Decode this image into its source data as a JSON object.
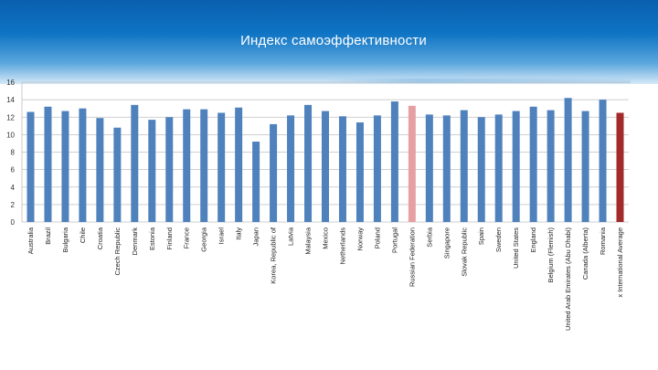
{
  "slide": {
    "title": "Индекс самоэффективности"
  },
  "colors": {
    "default_bar": "#4f81bd",
    "russia_bar": "#e6a0a4",
    "average_bar": "#a32a2a",
    "gridline": "#bfbfbf"
  },
  "chart_data": {
    "type": "bar",
    "title": "",
    "xlabel": "",
    "ylabel": "",
    "ylim": [
      0,
      16
    ],
    "yticks": [
      0,
      2,
      4,
      6,
      8,
      10,
      12,
      14,
      16
    ],
    "grid": true,
    "legend": "none",
    "categories": [
      "Australia",
      "Brazil",
      "Bulgaria",
      "Chile",
      "Croatia",
      "Czech Republic",
      "Denmark",
      "Estonia",
      "Finland",
      "France",
      "Georgia",
      "Israel",
      "Italy",
      "Japan",
      "Korea, Republic of",
      "Latvia",
      "Malaysia",
      "Mexico",
      "Netherlands",
      "Norway",
      "Poland",
      "Portugal",
      "Russian Federation",
      "Serbia",
      "Singapore",
      "Slovak Republic",
      "Spain",
      "Sweden",
      "United States",
      "England",
      "Belgium (Flemish)",
      "United Arab Emirates (Abu Dhabi)",
      "Canada (Alberta)",
      "Romania",
      "x International Average"
    ],
    "values": [
      12.6,
      13.2,
      12.7,
      13.0,
      11.9,
      10.8,
      13.4,
      11.7,
      12.0,
      12.9,
      12.9,
      12.5,
      13.1,
      9.2,
      11.2,
      12.2,
      13.4,
      12.7,
      12.1,
      11.4,
      12.2,
      13.8,
      13.3,
      12.3,
      12.2,
      12.8,
      12.0,
      12.3,
      12.7,
      13.2,
      12.8,
      14.2,
      12.7,
      14.0,
      12.5
    ],
    "highlight": {
      "Russian Federation": "#e6a0a4",
      "x International Average": "#a32a2a"
    }
  }
}
